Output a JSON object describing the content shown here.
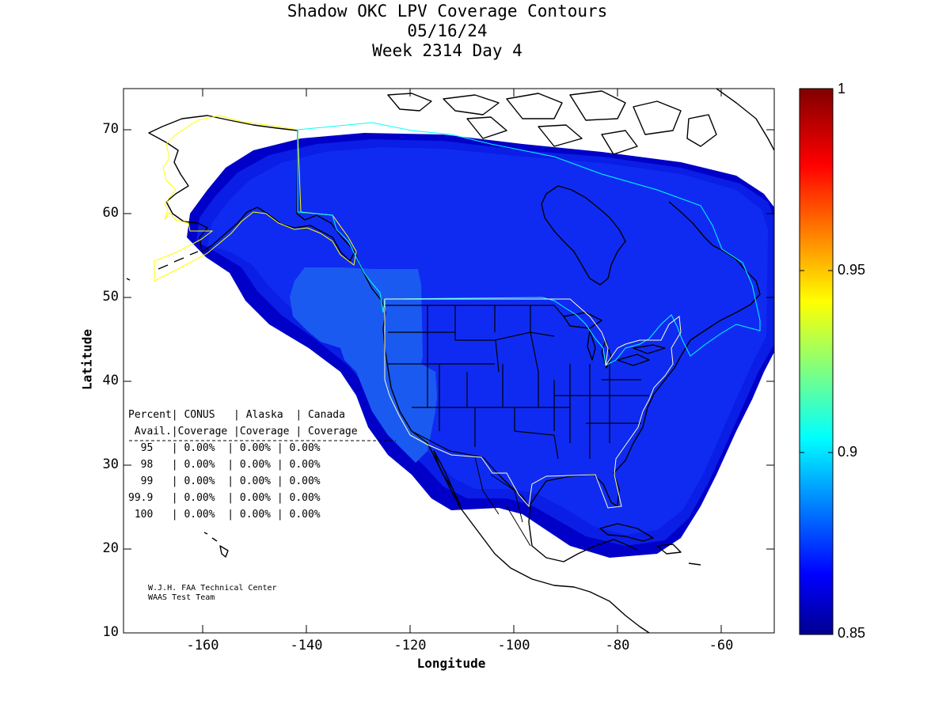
{
  "title": {
    "line1": "Shadow OKC LPV Coverage Contours",
    "line2": "05/16/24",
    "line3": "Week 2314 Day 4"
  },
  "axes": {
    "xlabel": "Longitude",
    "ylabel": "Latitude",
    "xticks": [
      "-160",
      "-140",
      "-120",
      "-100",
      "-80",
      "-60"
    ],
    "yticks": [
      "70",
      "60",
      "50",
      "40",
      "30",
      "20",
      "10"
    ],
    "xlim": [
      -175,
      -50
    ],
    "ylim": [
      10,
      75
    ]
  },
  "colorbar": {
    "ticks": [
      "1",
      "0.95",
      "0.9",
      "0.85"
    ],
    "range": [
      0.85,
      1
    ],
    "colormap": "jet"
  },
  "stats_table": {
    "header1": "Percent| CONUS   | Alaska  | Canada",
    "header2": " Avail.|Coverage |Coverage | Coverage",
    "rows": [
      "  95   | 0.00%  | 0.00% | 0.00%",
      "  98   | 0.00%  | 0.00% | 0.00%",
      "  99   | 0.00%  | 0.00% | 0.00%",
      "99.9   | 0.00%  | 0.00% | 0.00%",
      " 100   | 0.00%  | 0.00% | 0.00%"
    ]
  },
  "credit": {
    "line1": "W.J.H. FAA Technical Center",
    "line2": "WAAS Test Team"
  },
  "colors": {
    "coverage_dark": "#0000c8",
    "coverage_mid": "#0a1ee6",
    "coverage_main": "#0f2bf2",
    "coverage_light": "#1a5af0",
    "alaska_boundary": "#ffff00",
    "canada_boundary": "#00ffff",
    "conus_boundary": "#ffffcc"
  }
}
